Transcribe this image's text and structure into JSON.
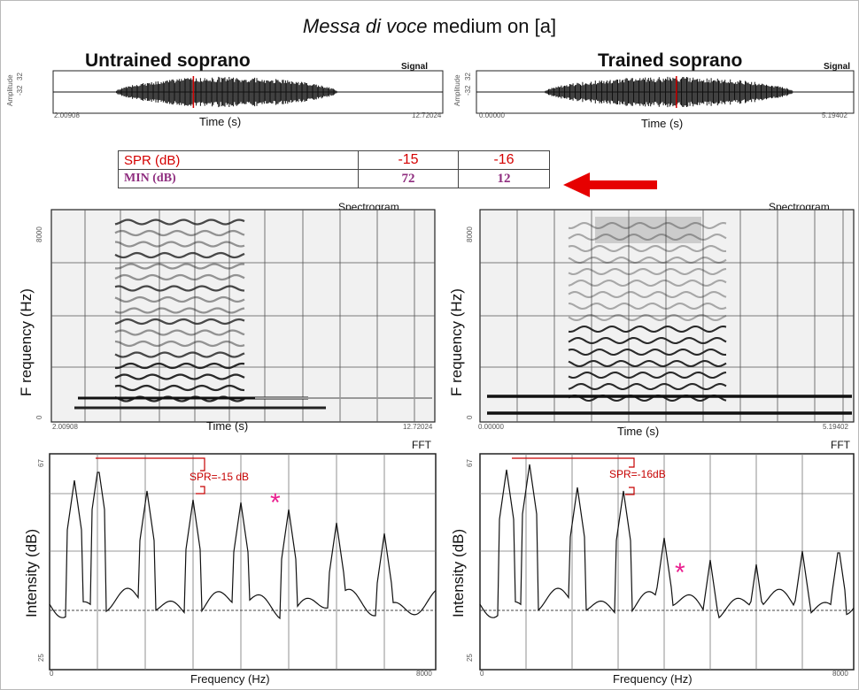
{
  "title_parts": {
    "prefix_italic": "Messa di voce",
    "rest": " medium on [a]"
  },
  "left_singer": "Untrained soprano",
  "right_singer": "Trained soprano",
  "signal_label": "Signal",
  "spectrogram_label": "Spectrogram",
  "fft_label": "FFT",
  "time_label": "Time (s)",
  "frequency_label": "Frequency (Hz)",
  "amplitude_label": "Amplitude",
  "signal_ticks": {
    "left_start": "2.00908",
    "left_end": "12.72024",
    "right_start": "0.00000",
    "right_end": "5.19402"
  },
  "amplitude_ticks": [
    "32",
    "-32"
  ],
  "spectrogram_ylabel": "F requency  (Hz)",
  "spectrogram_y_ticks": [
    "8000",
    "0"
  ],
  "fft_ylabel": "Intensity  (dB)",
  "fft_y_ticks": [
    "67",
    "25"
  ],
  "fft_x_ticks": [
    "0",
    "8000"
  ],
  "table": {
    "rows": [
      {
        "label": "SPR (dB)",
        "values": [
          "-15",
          "-16"
        ]
      },
      {
        "label": "MIN (dB)",
        "values": [
          "72",
          "12"
        ]
      }
    ]
  },
  "annotations": {
    "left_spr": "SPR=-15 dB",
    "right_spr": "SPR=-16dB",
    "star": "*"
  },
  "chart_data": [
    {
      "type": "line",
      "title": "Signal",
      "xlabel": "Time (s)",
      "ylabel": "Amplitude",
      "x_range": [
        2.00908,
        12.72024
      ],
      "y_range": [
        -32,
        32
      ],
      "series": [
        {
          "values": []
        }
      ]
    },
    {
      "type": "line",
      "title": "Signal",
      "xlabel": "Time (s)",
      "ylabel": "Amplitude",
      "x_range": [
        0.0,
        5.19402
      ],
      "y_range": [
        -32,
        32
      ],
      "series": [
        {
          "values": []
        }
      ]
    },
    {
      "type": "heatmap",
      "title": "Spectrogram",
      "xlabel": "Time (s)",
      "ylabel": "F requency  (Hz)",
      "x_range": [
        2.00908,
        12.72024
      ],
      "y_range": [
        0,
        8000
      ]
    },
    {
      "type": "heatmap",
      "title": "Spectrogram",
      "xlabel": "Time (s)",
      "ylabel": "F requency  (Hz)",
      "x_range": [
        0.0,
        5.19402
      ],
      "y_range": [
        0,
        8000
      ]
    },
    {
      "type": "line",
      "title": "FFT",
      "xlabel": "Frequency (Hz)",
      "ylabel": "Intensity  (dB)",
      "x_range": [
        0,
        8000
      ],
      "y_range": [
        25,
        67
      ],
      "annotation": "SPR=-15 dB"
    },
    {
      "type": "line",
      "title": "FFT",
      "xlabel": "Frequency (Hz)",
      "ylabel": "Intensity  (dB)",
      "x_range": [
        0,
        8000
      ],
      "y_range": [
        25,
        67
      ],
      "annotation": "SPR=-16dB"
    }
  ]
}
